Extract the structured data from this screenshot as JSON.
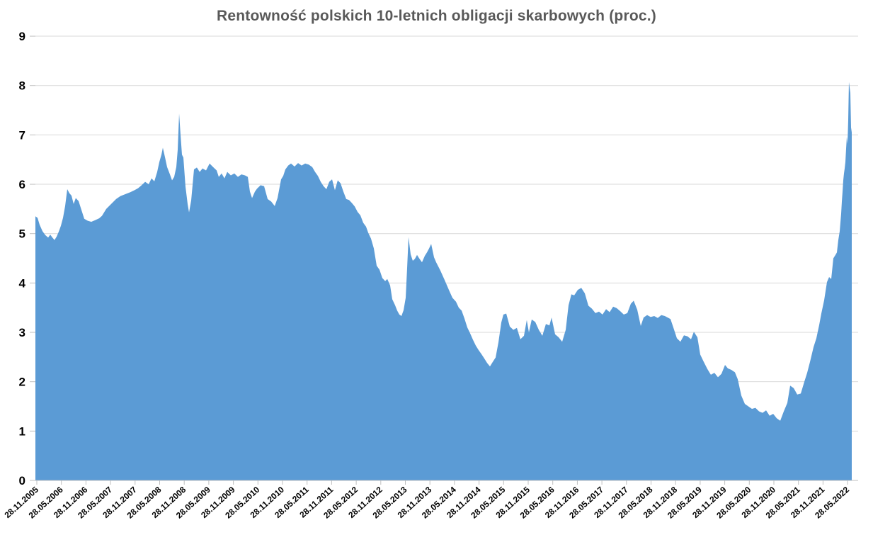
{
  "chart_data": {
    "type": "area",
    "title": "Rentowność polskich 10-letnich obligacji skarbowych (proc.)",
    "ylabel": "",
    "xlabel": "",
    "ylim": [
      0,
      9
    ],
    "y_tick_labels": [
      "0",
      "1",
      "2",
      "3",
      "4",
      "5",
      "6",
      "7",
      "8",
      "9"
    ],
    "x_tick_labels": [
      "28.11.2005",
      "28.05.2006",
      "28.11.2006",
      "28.05.2007",
      "28.11.2007",
      "28.05.2008",
      "28.11.2008",
      "28.05.2009",
      "28.11.2009",
      "28.05.2010",
      "28.11.2010",
      "28.05.2011",
      "28.11.2011",
      "28.05.2012",
      "28.11.2012",
      "28.05.2013",
      "28.11.2013",
      "28.05.2014",
      "28.11.2014",
      "28.05.2015",
      "28.11.2015",
      "28.05.2016",
      "28.11.2016",
      "28.05.2017",
      "28.11.2017",
      "28.05.2018",
      "28.11.2018",
      "28.05.2019",
      "28.11.2019",
      "28.05.2020",
      "28.11.2020",
      "28.05.2021",
      "28.11.2021",
      "28.05.2022"
    ],
    "grid": "horizontal",
    "legend": "none",
    "colors": {
      "area_fill": "#5B9BD5",
      "gridline": "#D9D9D9",
      "axis_line": "#BFBFBF",
      "tick_mark": "#BFBFBF",
      "tick_label": "#000000",
      "title": "#595959",
      "background": "#FFFFFF"
    },
    "points_offset_value": [
      [
        0,
        5.35
      ],
      [
        3,
        5.32
      ],
      [
        6,
        5.18
      ],
      [
        10,
        5.05
      ],
      [
        14,
        4.97
      ],
      [
        18,
        4.92
      ],
      [
        21,
        4.98
      ],
      [
        24,
        4.92
      ],
      [
        27,
        4.87
      ],
      [
        30,
        4.94
      ],
      [
        33,
        5.04
      ],
      [
        36,
        5.16
      ],
      [
        39,
        5.32
      ],
      [
        42,
        5.56
      ],
      [
        45,
        5.9
      ],
      [
        48,
        5.82
      ],
      [
        51,
        5.77
      ],
      [
        54,
        5.6
      ],
      [
        57,
        5.72
      ],
      [
        61,
        5.66
      ],
      [
        65,
        5.48
      ],
      [
        69,
        5.3
      ],
      [
        74,
        5.26
      ],
      [
        79,
        5.24
      ],
      [
        84,
        5.27
      ],
      [
        90,
        5.31
      ],
      [
        94,
        5.36
      ],
      [
        100,
        5.5
      ],
      [
        107,
        5.6
      ],
      [
        114,
        5.7
      ],
      [
        120,
        5.76
      ],
      [
        127,
        5.8
      ],
      [
        134,
        5.84
      ],
      [
        140,
        5.88
      ],
      [
        145,
        5.92
      ],
      [
        150,
        5.98
      ],
      [
        155,
        6.05
      ],
      [
        160,
        6.0
      ],
      [
        164,
        6.12
      ],
      [
        168,
        6.06
      ],
      [
        172,
        6.25
      ],
      [
        175,
        6.45
      ],
      [
        178,
        6.6
      ],
      [
        180,
        6.74
      ],
      [
        183,
        6.55
      ],
      [
        186,
        6.35
      ],
      [
        190,
        6.2
      ],
      [
        193,
        6.08
      ],
      [
        196,
        6.15
      ],
      [
        199,
        6.35
      ],
      [
        201,
        6.7
      ],
      [
        203,
        7.43
      ],
      [
        205,
        7.0
      ],
      [
        207,
        6.6
      ],
      [
        209,
        6.54
      ],
      [
        212,
        5.95
      ],
      [
        215,
        5.6
      ],
      [
        217,
        5.43
      ],
      [
        220,
        5.67
      ],
      [
        224,
        6.3
      ],
      [
        228,
        6.34
      ],
      [
        232,
        6.25
      ],
      [
        236,
        6.32
      ],
      [
        241,
        6.28
      ],
      [
        246,
        6.42
      ],
      [
        251,
        6.35
      ],
      [
        256,
        6.28
      ],
      [
        259,
        6.15
      ],
      [
        263,
        6.22
      ],
      [
        267,
        6.12
      ],
      [
        271,
        6.25
      ],
      [
        276,
        6.18
      ],
      [
        281,
        6.22
      ],
      [
        286,
        6.15
      ],
      [
        291,
        6.2
      ],
      [
        296,
        6.18
      ],
      [
        300,
        6.15
      ],
      [
        303,
        5.85
      ],
      [
        306,
        5.72
      ],
      [
        310,
        5.85
      ],
      [
        313,
        5.91
      ],
      [
        318,
        5.98
      ],
      [
        323,
        5.96
      ],
      [
        328,
        5.7
      ],
      [
        333,
        5.65
      ],
      [
        338,
        5.56
      ],
      [
        342,
        5.72
      ],
      [
        347,
        6.1
      ],
      [
        350,
        6.17
      ],
      [
        353,
        6.3
      ],
      [
        357,
        6.38
      ],
      [
        361,
        6.42
      ],
      [
        366,
        6.36
      ],
      [
        371,
        6.43
      ],
      [
        376,
        6.38
      ],
      [
        381,
        6.42
      ],
      [
        386,
        6.4
      ],
      [
        391,
        6.35
      ],
      [
        395,
        6.25
      ],
      [
        399,
        6.17
      ],
      [
        403,
        6.05
      ],
      [
        407,
        5.96
      ],
      [
        411,
        5.9
      ],
      [
        415,
        6.05
      ],
      [
        419,
        6.1
      ],
      [
        423,
        5.88
      ],
      [
        427,
        6.08
      ],
      [
        431,
        6.02
      ],
      [
        435,
        5.85
      ],
      [
        439,
        5.7
      ],
      [
        443,
        5.68
      ],
      [
        447,
        5.62
      ],
      [
        451,
        5.55
      ],
      [
        455,
        5.44
      ],
      [
        459,
        5.37
      ],
      [
        463,
        5.22
      ],
      [
        467,
        5.14
      ],
      [
        470,
        5.02
      ],
      [
        474,
        4.9
      ],
      [
        478,
        4.7
      ],
      [
        482,
        4.35
      ],
      [
        486,
        4.27
      ],
      [
        490,
        4.1
      ],
      [
        494,
        4.04
      ],
      [
        497,
        4.08
      ],
      [
        501,
        3.95
      ],
      [
        504,
        3.67
      ],
      [
        508,
        3.55
      ],
      [
        511,
        3.44
      ],
      [
        514,
        3.36
      ],
      [
        517,
        3.33
      ],
      [
        520,
        3.45
      ],
      [
        523,
        3.7
      ],
      [
        525,
        4.3
      ],
      [
        527,
        4.93
      ],
      [
        530,
        4.58
      ],
      [
        533,
        4.45
      ],
      [
        536,
        4.49
      ],
      [
        539,
        4.57
      ],
      [
        542,
        4.5
      ],
      [
        546,
        4.42
      ],
      [
        550,
        4.55
      ],
      [
        553,
        4.62
      ],
      [
        556,
        4.7
      ],
      [
        559,
        4.79
      ],
      [
        563,
        4.52
      ],
      [
        566,
        4.42
      ],
      [
        572,
        4.25
      ],
      [
        578,
        4.06
      ],
      [
        584,
        3.86
      ],
      [
        589,
        3.7
      ],
      [
        594,
        3.62
      ],
      [
        598,
        3.5
      ],
      [
        602,
        3.44
      ],
      [
        606,
        3.28
      ],
      [
        610,
        3.1
      ],
      [
        614,
        2.98
      ],
      [
        618,
        2.85
      ],
      [
        622,
        2.73
      ],
      [
        626,
        2.64
      ],
      [
        630,
        2.56
      ],
      [
        634,
        2.47
      ],
      [
        638,
        2.38
      ],
      [
        642,
        2.31
      ],
      [
        645,
        2.38
      ],
      [
        650,
        2.49
      ],
      [
        654,
        2.8
      ],
      [
        658,
        3.2
      ],
      [
        661,
        3.36
      ],
      [
        665,
        3.38
      ],
      [
        670,
        3.12
      ],
      [
        675,
        3.05
      ],
      [
        680,
        3.09
      ],
      [
        685,
        2.86
      ],
      [
        690,
        2.93
      ],
      [
        694,
        3.25
      ],
      [
        697,
        3.0
      ],
      [
        701,
        3.26
      ],
      [
        706,
        3.21
      ],
      [
        711,
        3.05
      ],
      [
        716,
        2.93
      ],
      [
        721,
        3.17
      ],
      [
        726,
        3.14
      ],
      [
        729,
        3.3
      ],
      [
        734,
        2.96
      ],
      [
        739,
        2.9
      ],
      [
        744,
        2.81
      ],
      [
        749,
        3.05
      ],
      [
        753,
        3.55
      ],
      [
        757,
        3.77
      ],
      [
        761,
        3.75
      ],
      [
        766,
        3.86
      ],
      [
        771,
        3.9
      ],
      [
        776,
        3.79
      ],
      [
        781,
        3.54
      ],
      [
        786,
        3.48
      ],
      [
        791,
        3.39
      ],
      [
        796,
        3.42
      ],
      [
        801,
        3.36
      ],
      [
        806,
        3.47
      ],
      [
        811,
        3.41
      ],
      [
        816,
        3.52
      ],
      [
        821,
        3.49
      ],
      [
        826,
        3.43
      ],
      [
        831,
        3.36
      ],
      [
        836,
        3.39
      ],
      [
        841,
        3.58
      ],
      [
        845,
        3.64
      ],
      [
        850,
        3.46
      ],
      [
        855,
        3.13
      ],
      [
        859,
        3.3
      ],
      [
        864,
        3.35
      ],
      [
        869,
        3.31
      ],
      [
        874,
        3.33
      ],
      [
        879,
        3.29
      ],
      [
        884,
        3.35
      ],
      [
        889,
        3.33
      ],
      [
        893,
        3.3
      ],
      [
        897,
        3.27
      ],
      [
        901,
        3.1
      ],
      [
        906,
        2.88
      ],
      [
        911,
        2.81
      ],
      [
        916,
        2.94
      ],
      [
        921,
        2.92
      ],
      [
        926,
        2.86
      ],
      [
        930,
        3.01
      ],
      [
        935,
        2.9
      ],
      [
        939,
        2.55
      ],
      [
        944,
        2.4
      ],
      [
        949,
        2.26
      ],
      [
        954,
        2.14
      ],
      [
        959,
        2.18
      ],
      [
        964,
        2.09
      ],
      [
        969,
        2.16
      ],
      [
        974,
        2.34
      ],
      [
        978,
        2.27
      ],
      [
        983,
        2.24
      ],
      [
        988,
        2.19
      ],
      [
        992,
        2.05
      ],
      [
        997,
        1.72
      ],
      [
        1002,
        1.55
      ],
      [
        1007,
        1.5
      ],
      [
        1012,
        1.45
      ],
      [
        1017,
        1.47
      ],
      [
        1022,
        1.4
      ],
      [
        1027,
        1.37
      ],
      [
        1032,
        1.42
      ],
      [
        1037,
        1.31
      ],
      [
        1042,
        1.35
      ],
      [
        1047,
        1.26
      ],
      [
        1052,
        1.21
      ],
      [
        1057,
        1.4
      ],
      [
        1062,
        1.57
      ],
      [
        1066,
        1.92
      ],
      [
        1071,
        1.87
      ],
      [
        1076,
        1.74
      ],
      [
        1081,
        1.76
      ],
      [
        1086,
        2.0
      ],
      [
        1090,
        2.18
      ],
      [
        1094,
        2.4
      ],
      [
        1099,
        2.7
      ],
      [
        1103,
        2.88
      ],
      [
        1107,
        3.15
      ],
      [
        1110,
        3.38
      ],
      [
        1114,
        3.65
      ],
      [
        1118,
        4.02
      ],
      [
        1121,
        4.12
      ],
      [
        1124,
        4.08
      ],
      [
        1127,
        4.5
      ],
      [
        1130,
        4.57
      ],
      [
        1132,
        4.62
      ],
      [
        1134,
        4.87
      ],
      [
        1136,
        5.05
      ],
      [
        1138,
        5.4
      ],
      [
        1139,
        5.65
      ],
      [
        1140,
        5.85
      ],
      [
        1141,
        6.08
      ],
      [
        1142,
        6.22
      ],
      [
        1143,
        6.32
      ],
      [
        1144,
        6.45
      ],
      [
        1145,
        6.72
      ],
      [
        1146,
        6.96
      ],
      [
        1147,
        6.82
      ],
      [
        1148,
        7.3
      ],
      [
        1149,
        8.07
      ],
      [
        1151,
        7.85
      ],
      [
        1152,
        7.15
      ],
      [
        1153,
        7.05
      ]
    ]
  }
}
